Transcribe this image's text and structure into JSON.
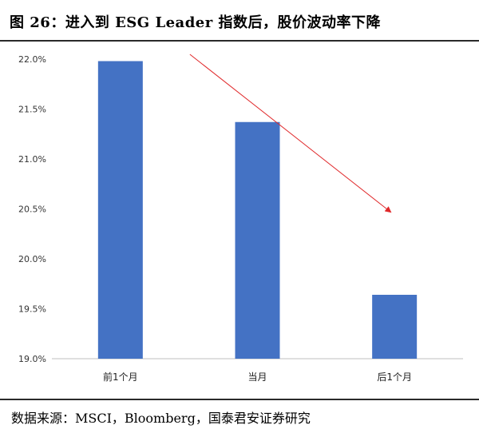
{
  "header": {
    "title": "图 26：进入到 ESG Leader 指数后，股价波动率下降"
  },
  "footer": {
    "source": "数据来源：MSCI，Bloomberg，国泰君安证券研究"
  },
  "chart_data": {
    "type": "bar",
    "categories": [
      "前1个月",
      "当月",
      "后1个月"
    ],
    "values": [
      21.98,
      21.37,
      19.64
    ],
    "ylim": [
      19.0,
      22.0
    ],
    "yticks": [
      19.0,
      19.5,
      20.0,
      20.5,
      21.0,
      21.5,
      22.0
    ],
    "ytick_labels": [
      "19.0%",
      "19.5%",
      "20.0%",
      "20.5%",
      "21.0%",
      "21.5%",
      "22.0%"
    ],
    "bar_color": "#4472C4",
    "arrow_color": "#E0282A",
    "annotation": "downward trend arrow",
    "grid": false,
    "title": "",
    "xlabel": "",
    "ylabel": ""
  }
}
